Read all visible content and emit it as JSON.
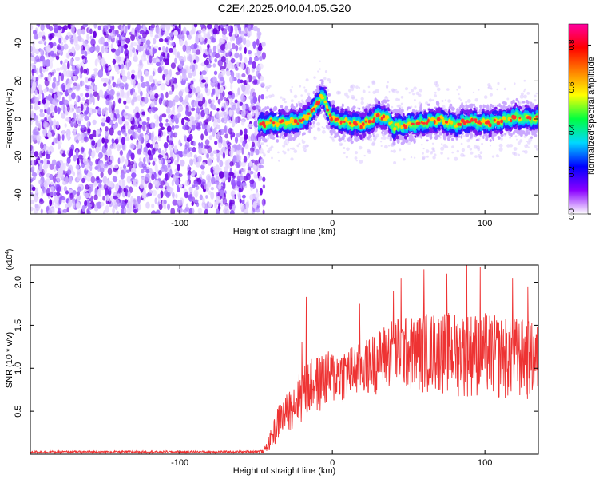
{
  "figure": {
    "title": "C2E4.2025.040.04.05.G20"
  },
  "chart_data": [
    {
      "type": "heatmap",
      "title": "C2E4.2025.040.04.05.G20",
      "xlabel": "Height of straight line (km)",
      "ylabel": "Frequency (Hz)",
      "xlim": [
        -198,
        135
      ],
      "ylim": [
        -50,
        50
      ],
      "xticks": [
        -100,
        0,
        100
      ],
      "xtick_labels": [
        "-100",
        "0",
        "100"
      ],
      "yticks": [
        -40,
        -20,
        0,
        20,
        40
      ],
      "ytick_labels": [
        "-40",
        "-20",
        "0",
        "20",
        "40"
      ],
      "noise_region_x": [
        -198,
        -48
      ],
      "signal_region_x": [
        -48,
        135
      ],
      "ridge": {
        "x": [
          -48,
          -40,
          -30,
          -20,
          -12,
          -8,
          -6,
          -4,
          0,
          10,
          20,
          25,
          30,
          35,
          40,
          50,
          60,
          70,
          80,
          90,
          100,
          110,
          120,
          135
        ],
        "frequency": [
          -3,
          -2,
          -2,
          -1,
          5,
          11,
          12,
          7,
          0,
          -2,
          -3,
          -1,
          2,
          1,
          -4,
          -3,
          -2,
          0,
          -3,
          -1,
          -2,
          -1,
          1,
          0
        ]
      },
      "colorbar": {
        "label": "Normalized spectral amplitude",
        "range": [
          0.0,
          0.9
        ],
        "ticks": [
          0.0,
          0.2,
          0.4,
          0.6,
          0.8
        ],
        "tick_labels": [
          "0.0",
          "0.2",
          "0.4",
          "0.6",
          "0.8"
        ],
        "colormap": [
          "#ffffff",
          "#8a00ff",
          "#0000ff",
          "#00d8ff",
          "#00ff40",
          "#ffff00",
          "#ff8000",
          "#ff0000",
          "#ff00a0"
        ]
      },
      "grid": false,
      "legend": "none"
    },
    {
      "type": "line",
      "xlabel": "Height of straight line (km)",
      "ylabel": "SNR (10 * v/v)",
      "y_multiplier_label": "(x10",
      "y_multiplier_exp": "4",
      "y_multiplier_close": ")",
      "xlim": [
        -198,
        135
      ],
      "ylim": [
        0,
        2.2
      ],
      "xticks": [
        -100,
        0,
        100
      ],
      "xtick_labels": [
        "-100",
        "0",
        "100"
      ],
      "yticks": [
        0.5,
        1.0,
        1.5,
        2.0
      ],
      "ytick_labels": [
        "0.5",
        "1.0",
        "1.5",
        "2.0"
      ],
      "series_color": "#ee3333",
      "envelope": {
        "x": [
          -198,
          -60,
          -45,
          -40,
          -35,
          -30,
          -25,
          -20,
          -15,
          -10,
          -5,
          0,
          10,
          20,
          30,
          40,
          50,
          60,
          70,
          80,
          90,
          100,
          110,
          120,
          130,
          135
        ],
        "low": [
          0.01,
          0.01,
          0.01,
          0.05,
          0.15,
          0.25,
          0.3,
          0.35,
          0.4,
          0.45,
          0.5,
          0.55,
          0.6,
          0.65,
          0.7,
          0.75,
          0.7,
          0.7,
          0.7,
          0.65,
          0.65,
          0.65,
          0.6,
          0.6,
          0.6,
          0.6
        ],
        "high": [
          0.04,
          0.04,
          0.05,
          0.3,
          0.6,
          0.7,
          0.85,
          1.0,
          1.1,
          1.15,
          1.2,
          1.2,
          1.25,
          1.3,
          1.45,
          1.6,
          1.6,
          1.65,
          1.65,
          1.65,
          1.65,
          1.65,
          1.6,
          1.6,
          1.55,
          1.5
        ]
      },
      "spikes": [
        {
          "x": -17,
          "y": 1.83
        },
        {
          "x": -20,
          "y": 1.3
        },
        {
          "x": 18,
          "y": 1.75
        },
        {
          "x": 40,
          "y": 1.9
        },
        {
          "x": 45,
          "y": 2.05
        },
        {
          "x": 60,
          "y": 2.15
        },
        {
          "x": 75,
          "y": 2.1
        },
        {
          "x": 88,
          "y": 2.2
        },
        {
          "x": 97,
          "y": 2.18
        },
        {
          "x": 118,
          "y": 2.05
        },
        {
          "x": 128,
          "y": 1.95
        }
      ],
      "grid": false,
      "legend": "none"
    }
  ]
}
